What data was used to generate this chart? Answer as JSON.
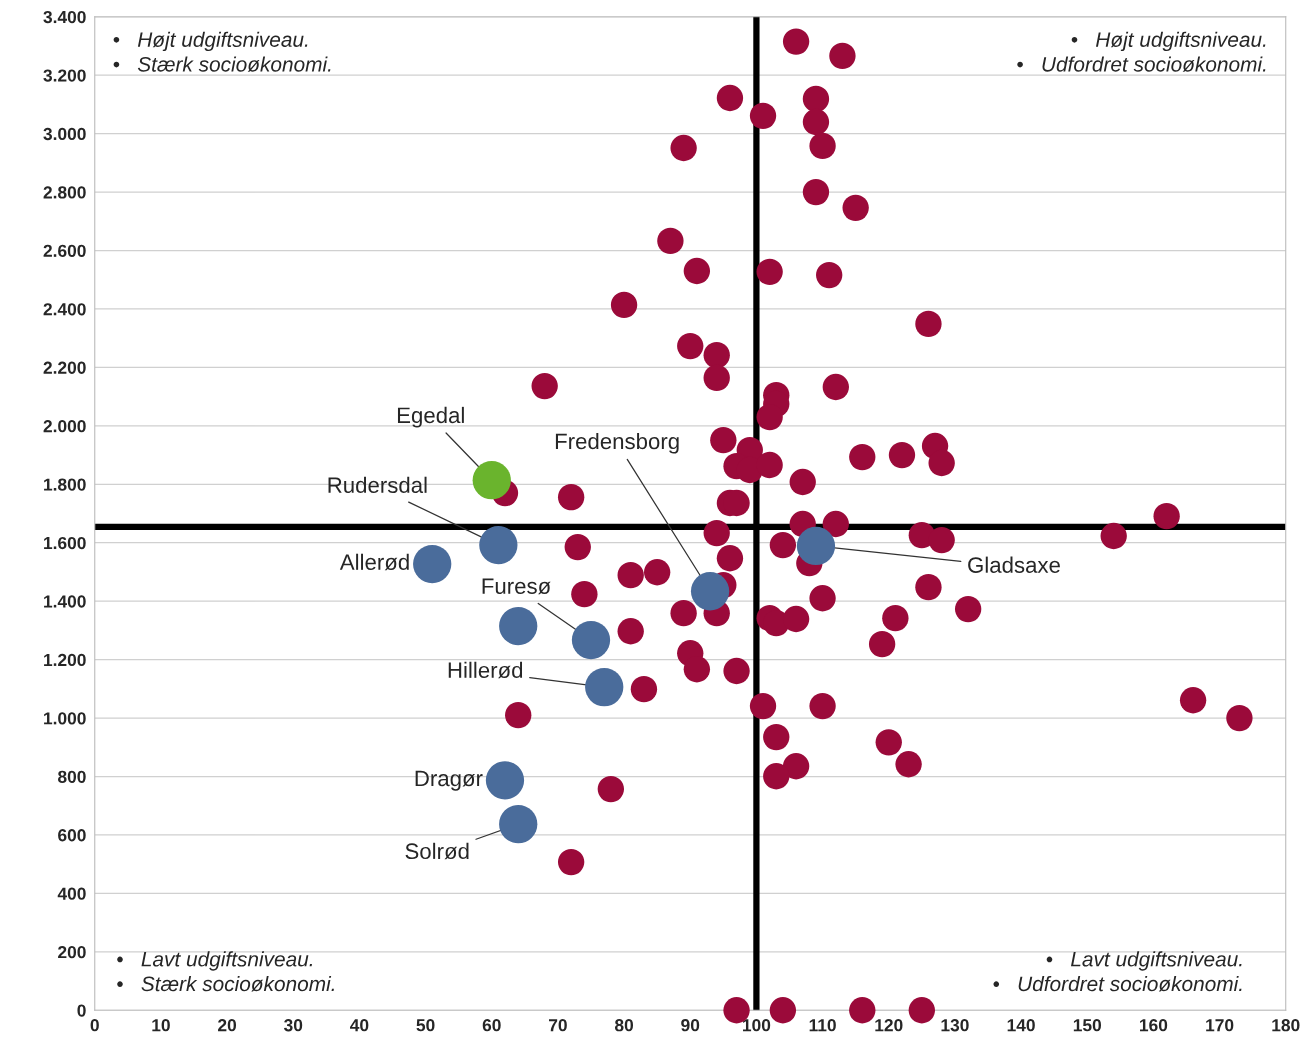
{
  "chart_data": {
    "type": "scatter",
    "xlim": [
      0,
      180
    ],
    "xticks": [
      0,
      10,
      20,
      30,
      40,
      50,
      60,
      70,
      80,
      90,
      100,
      110,
      120,
      130,
      140,
      150,
      160,
      170,
      180
    ],
    "ylim": [
      0,
      3400
    ],
    "yticks": [
      0,
      200,
      400,
      600,
      800,
      {
        "value": 1000,
        "label": "1.000"
      },
      {
        "value": 1200,
        "label": "1.200"
      },
      {
        "value": 1400,
        "label": "1.400"
      },
      {
        "value": 1600,
        "label": "1.600"
      },
      {
        "value": 1800,
        "label": "1.800"
      },
      {
        "value": 2000,
        "label": "2.000"
      },
      {
        "value": 2200,
        "label": "2.200"
      },
      {
        "value": 2400,
        "label": "2.400"
      },
      {
        "value": 2600,
        "label": "2.600"
      },
      {
        "value": 2800,
        "label": "2.800"
      },
      {
        "value": 3000,
        "label": "3.000"
      },
      {
        "value": 3200,
        "label": "3.200"
      },
      {
        "value": 3400,
        "label": "3.400"
      }
    ],
    "grid": "y",
    "legend": false,
    "marker": "circle",
    "series": [
      {
        "color": "#9b0a3a",
        "x": [
          106,
          113,
          96,
          101,
          109,
          109,
          110,
          89,
          109,
          115,
          87,
          91,
          102,
          111,
          80,
          126,
          90,
          94,
          94,
          68,
          103,
          103,
          112,
          102,
          95,
          99,
          127,
          116,
          122,
          128,
          97,
          99,
          102,
          107,
          62,
          72,
          96,
          97,
          107,
          112,
          94,
          125,
          128,
          162,
          154,
          104,
          73,
          96,
          108,
          85,
          81,
          95,
          74,
          110,
          126,
          132,
          89,
          94,
          102,
          103,
          106,
          121,
          81,
          119,
          90,
          91,
          97,
          83,
          101,
          110,
          64,
          166,
          173,
          103,
          120,
          106,
          103,
          123,
          78,
          72,
          97,
          104,
          116,
          125
        ],
        "values": [
          3315,
          3266,
          3122,
          3061,
          3119,
          3040,
          2958,
          2951,
          2800,
          2746,
          2633,
          2530,
          2527,
          2516,
          2414,
          2349,
          2273,
          2242,
          2164,
          2136,
          2105,
          2075,
          2133,
          2030,
          1951,
          1917,
          1931,
          1893,
          1900,
          1873,
          1862,
          1849,
          1866,
          1808,
          1770,
          1756,
          1736,
          1736,
          1664,
          1664,
          1633,
          1626,
          1609,
          1691,
          1623,
          1592,
          1585,
          1547,
          1530,
          1499,
          1489,
          1455,
          1424,
          1410,
          1448,
          1373,
          1359,
          1359,
          1342,
          1325,
          1339,
          1342,
          1297,
          1253,
          1222,
          1167,
          1161,
          1099,
          1041,
          1041,
          1010,
          1061,
          1000,
          935,
          917,
          835,
          801,
          842,
          757,
          507,
          0,
          0,
          0,
          0
        ]
      },
      {
        "color": "#4a6c9b",
        "x": [
          61,
          51,
          64,
          75,
          93,
          109,
          77,
          62,
          64
        ],
        "values": [
          1592,
          1527,
          1315,
          1267,
          1434,
          1589,
          1106,
          787,
          637
        ]
      },
      {
        "color": "#6ab42d",
        "x": [
          60
        ],
        "values": [
          1814
        ]
      }
    ],
    "ref_lines": [
      {
        "axis": "x",
        "value": 100,
        "color": "#000000"
      },
      {
        "axis": "y",
        "value": 1654,
        "color": "#000000"
      }
    ],
    "annotations": [
      "•   Højt udgiftsniveau.\n•   Stærk socioøkonomi.",
      "•   Højt udgiftsniveau.\n•   Udfordret socioøkonomi.",
      "•   Lavt udgiftsniveau.\n•   Stærk socioøkonomi.",
      "•   Lavt udgiftsniveau.\n•   Udfordret socioøkonomi.",
      {
        "text": "Egedal",
        "x": 60,
        "y": 1814
      },
      {
        "text": "Rudersdal",
        "x": 61,
        "y": 1592
      },
      {
        "text": "Fredensborg",
        "x": 93,
        "y": 1434
      },
      {
        "text": "Allerød",
        "x": 51,
        "y": 1527
      },
      {
        "text": "Furesø",
        "x": 75,
        "y": 1267
      },
      {
        "text": "Gladsaxe",
        "x": 109,
        "y": 1589
      },
      {
        "text": "Hillerød",
        "x": 77,
        "y": 1106
      },
      {
        "text": "Dragør",
        "x": 62,
        "y": 787
      },
      {
        "text": "Solrød",
        "x": 64,
        "y": 637
      }
    ]
  }
}
